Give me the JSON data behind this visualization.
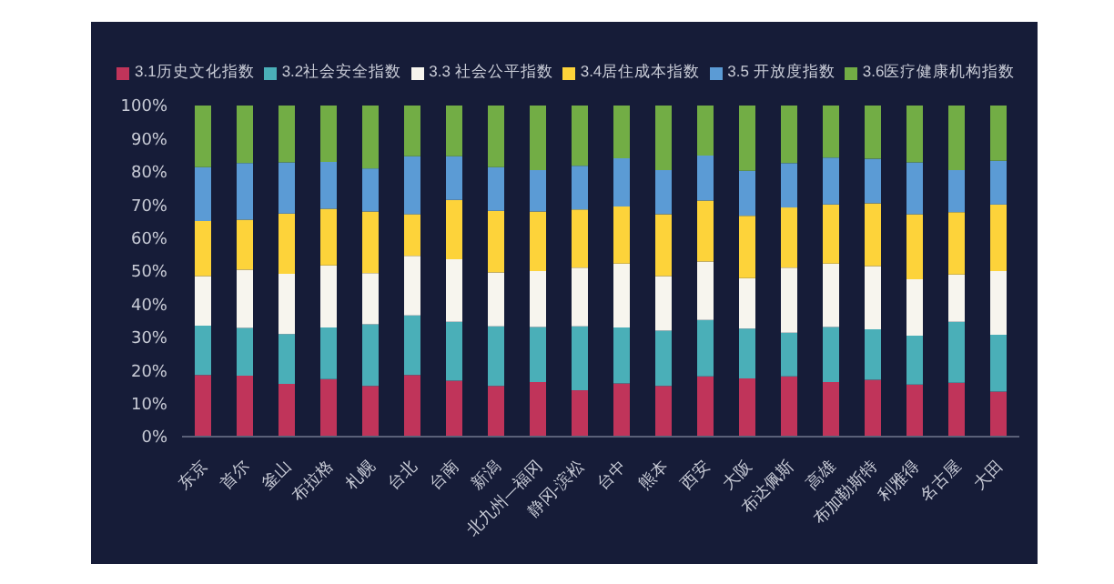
{
  "chart_data": {
    "type": "bar",
    "stacked": true,
    "legend": "top",
    "categories": [
      "东京",
      "首尔",
      "釜山",
      "布拉格",
      "札幌",
      "台北",
      "台南",
      "新潟",
      "北九州—福冈",
      "静冈-滨松",
      "台中",
      "熊本",
      "西安",
      "大阪",
      "布达佩斯",
      "高雄",
      "布加勒斯特",
      "利雅得",
      "名古屋",
      "大田"
    ],
    "ylim": [
      0,
      100
    ],
    "yticks": [
      {
        "value": 0,
        "label": "0%"
      },
      {
        "value": 10,
        "label": "10%"
      },
      {
        "value": 20,
        "label": "20%"
      },
      {
        "value": 30,
        "label": "30%"
      },
      {
        "value": 40,
        "label": "40%"
      },
      {
        "value": 50,
        "label": "50%"
      },
      {
        "value": 60,
        "label": "60%"
      },
      {
        "value": 70,
        "label": "70%"
      },
      {
        "value": 80,
        "label": "80%"
      },
      {
        "value": 90,
        "label": "90%"
      },
      {
        "value": 100,
        "label": "100%"
      }
    ],
    "series": [
      {
        "name": "3.1历史文化指数",
        "color": "#c0345a",
        "values": [
          18.6,
          18.4,
          15.9,
          17.4,
          15.3,
          18.6,
          16.9,
          15.3,
          16.5,
          14.0,
          16.1,
          15.3,
          18.2,
          17.6,
          18.2,
          16.5,
          17.2,
          15.7,
          16.3,
          13.6
        ]
      },
      {
        "name": "3.2社会安全指数",
        "color": "#4aafb8",
        "values": [
          14.9,
          14.4,
          15.1,
          15.6,
          18.6,
          18.0,
          17.8,
          18.0,
          16.6,
          19.3,
          16.9,
          16.7,
          17.0,
          15.0,
          13.2,
          16.6,
          15.2,
          14.8,
          18.4,
          17.2
        ]
      },
      {
        "name": "3.3 社会公平指数",
        "color": "#f7f5ee",
        "values": [
          15.0,
          17.6,
          18.2,
          18.7,
          15.5,
          18.0,
          18.9,
          16.3,
          16.9,
          17.7,
          19.3,
          16.5,
          17.7,
          15.3,
          19.6,
          19.2,
          19.1,
          17.0,
          14.3,
          19.2
        ]
      },
      {
        "name": "3.4居住成本指数",
        "color": "#fdd33a",
        "values": [
          16.6,
          15.1,
          18.2,
          17.1,
          18.6,
          12.6,
          17.9,
          18.6,
          18.0,
          17.6,
          17.2,
          18.7,
          18.4,
          18.8,
          18.2,
          17.8,
          19.0,
          19.7,
          18.8,
          20.1
        ]
      },
      {
        "name": "3.5 开放度指数",
        "color": "#5b9bd5",
        "values": [
          16.3,
          17.1,
          15.4,
          14.2,
          13.0,
          17.5,
          13.2,
          13.2,
          12.5,
          13.2,
          14.6,
          13.3,
          13.6,
          13.6,
          13.4,
          14.2,
          13.4,
          15.6,
          12.7,
          13.2
        ]
      },
      {
        "name": "3.6医疗健康机构指数",
        "color": "#72ad45",
        "values": [
          18.6,
          17.4,
          17.2,
          17.0,
          19.0,
          15.3,
          15.3,
          18.6,
          19.5,
          18.2,
          15.9,
          19.5,
          15.1,
          19.7,
          17.4,
          15.7,
          16.1,
          17.2,
          19.5,
          16.7
        ]
      }
    ]
  }
}
